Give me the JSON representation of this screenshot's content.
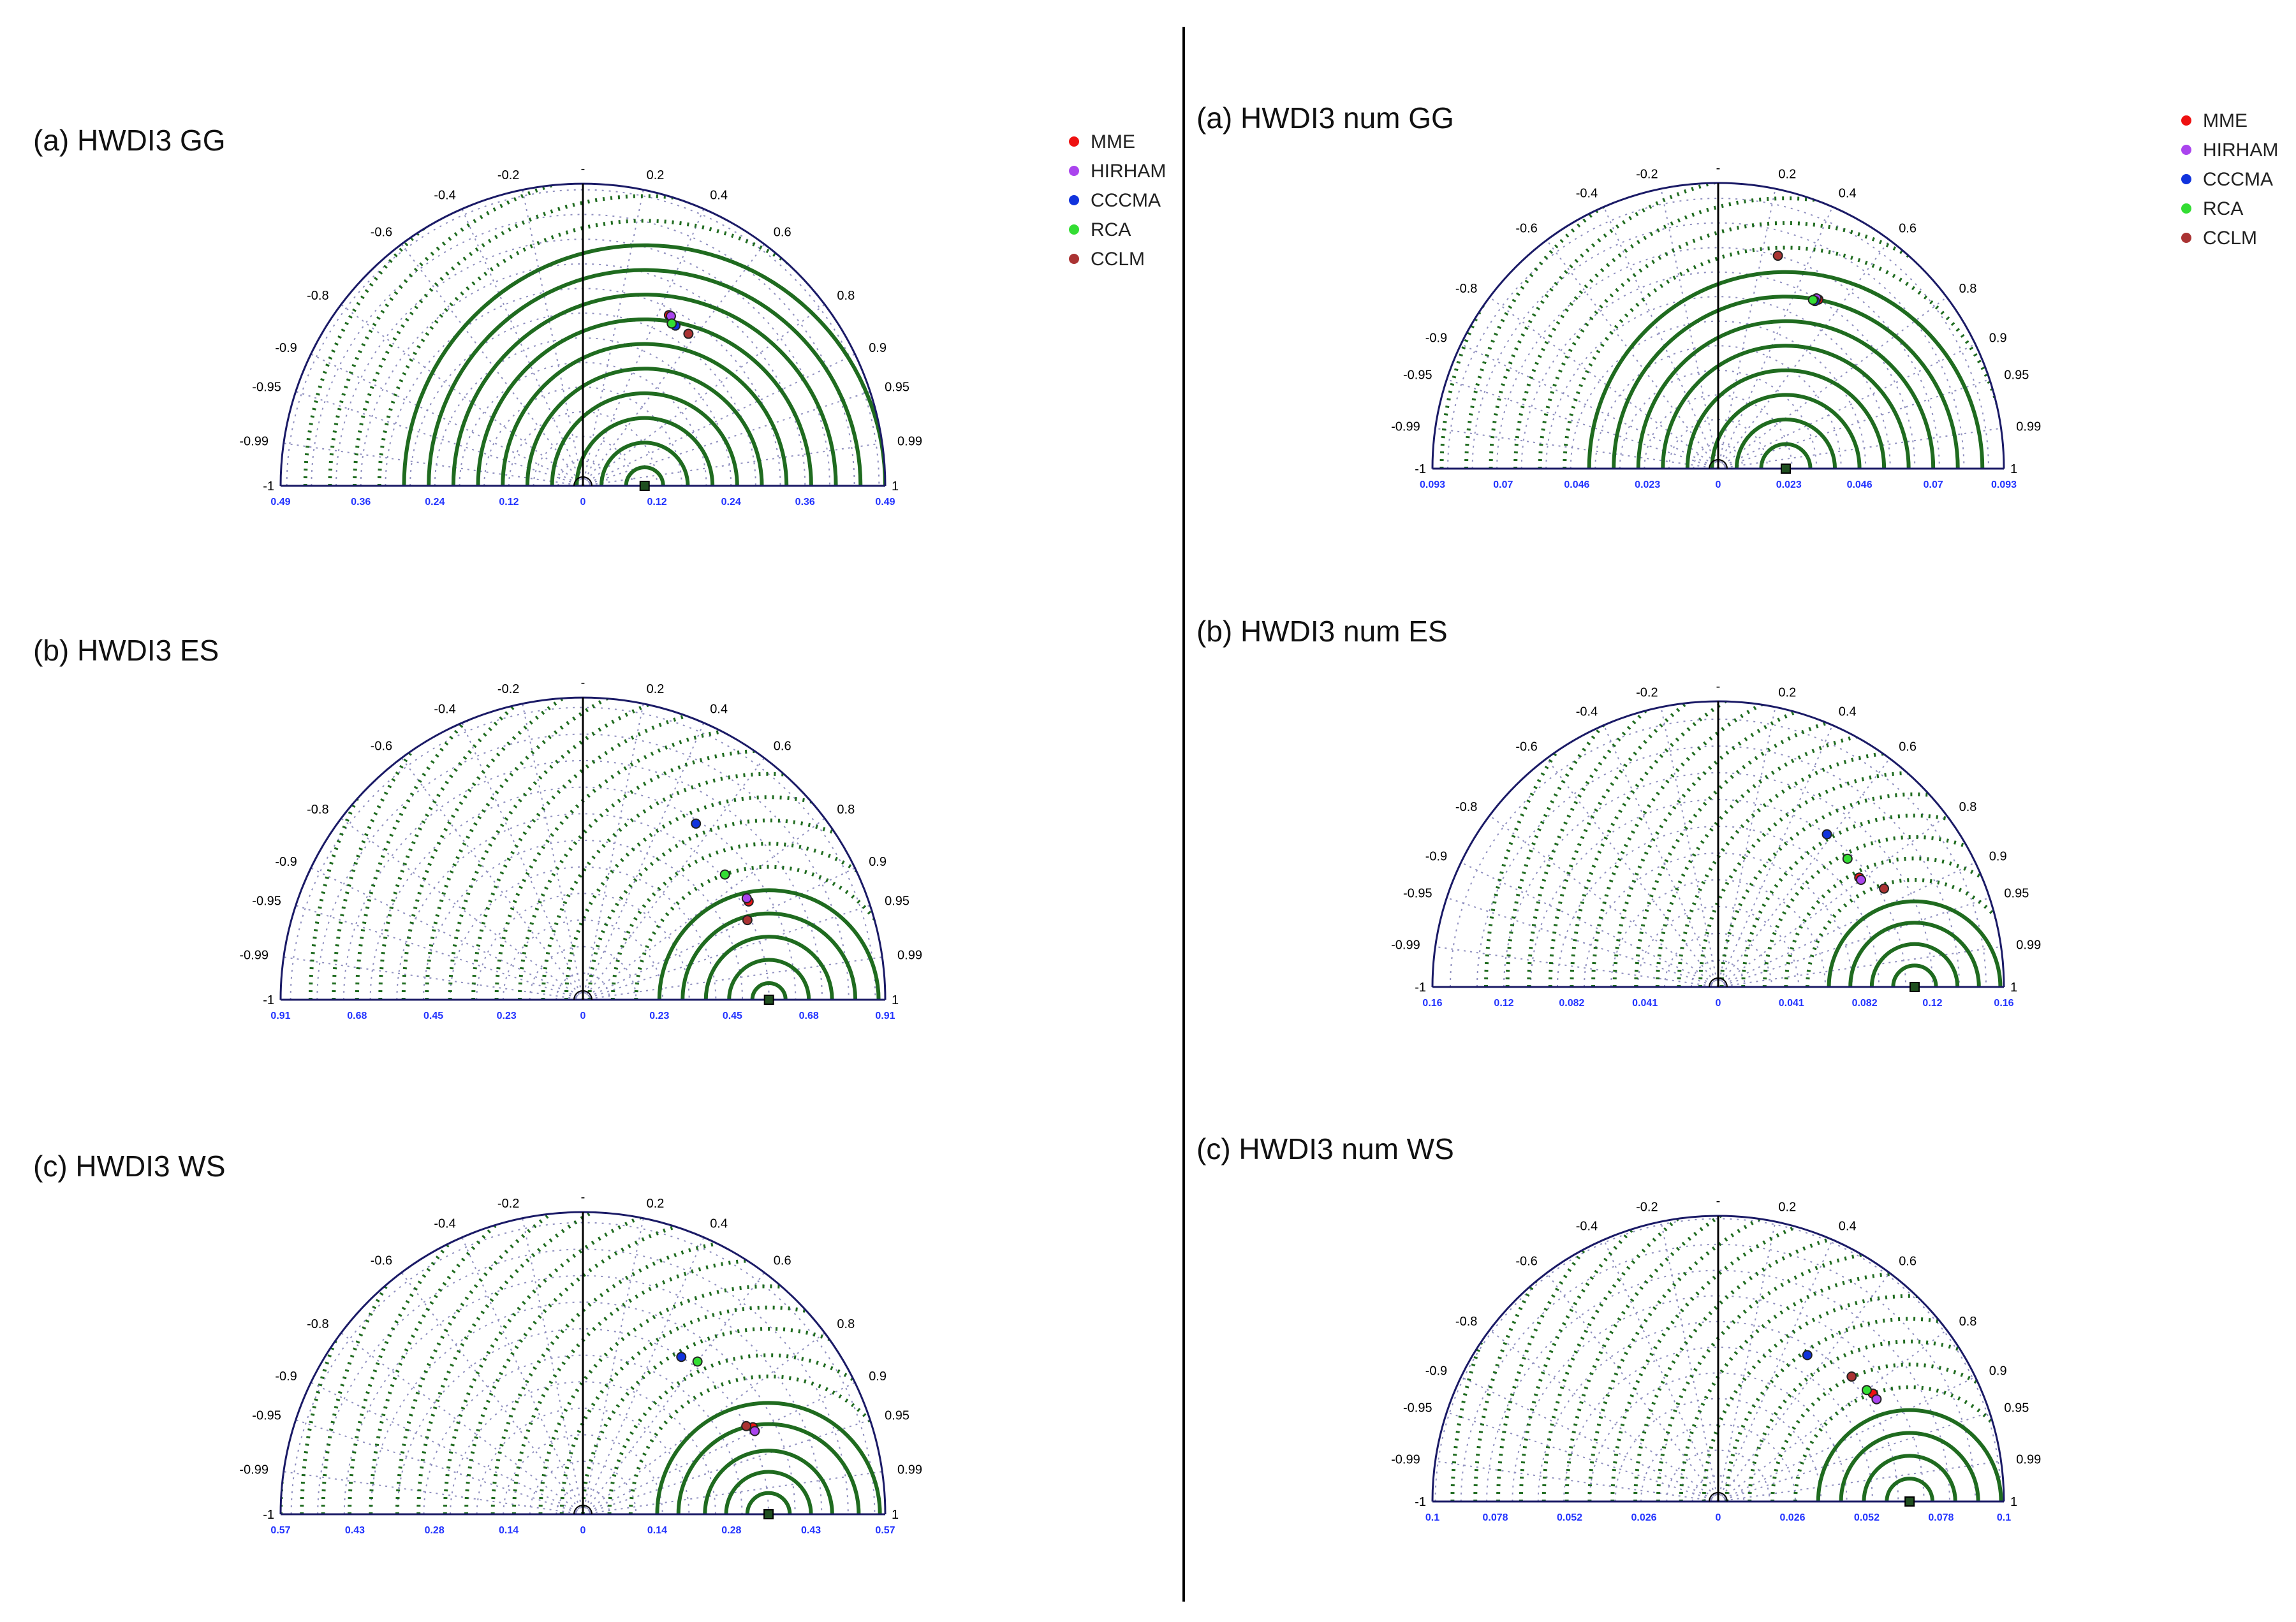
{
  "colors": {
    "outline": "#1a1a66",
    "rms_contour": "#1f6b1f",
    "std_arc": "#1a6b1a",
    "corr_grid": "#8f8fbf",
    "axis_ticks": "#2233ff",
    "contour_label": "#2e8b2e"
  },
  "legend": [
    {
      "label": "MME",
      "color": "#ee1111"
    },
    {
      "label": "HIRHAM",
      "color": "#aa44ee"
    },
    {
      "label": "CCCMA",
      "color": "#1133dd"
    },
    {
      "label": "RCA",
      "color": "#33dd33"
    },
    {
      "label": "CCLM",
      "color": "#aa3333"
    }
  ],
  "corr_ticks": [
    {
      "r": -1,
      "label": "-1"
    },
    {
      "r": -0.99,
      "label": "-0.99"
    },
    {
      "r": -0.95,
      "label": "-0.95"
    },
    {
      "r": -0.9,
      "label": "-0.9"
    },
    {
      "r": -0.8,
      "label": "-0.8"
    },
    {
      "r": -0.6,
      "label": "-0.6"
    },
    {
      "r": -0.4,
      "label": "-0.4"
    },
    {
      "r": -0.2,
      "label": "-0.2"
    },
    {
      "r": 0,
      "label": "-"
    },
    {
      "r": 0.2,
      "label": "0.2"
    },
    {
      "r": 0.4,
      "label": "0.4"
    },
    {
      "r": 0.6,
      "label": "0.6"
    },
    {
      "r": 0.8,
      "label": "0.8"
    },
    {
      "r": 0.9,
      "label": "0.9"
    },
    {
      "r": 0.95,
      "label": "0.95"
    },
    {
      "r": 0.99,
      "label": "0.99"
    },
    {
      "r": 1,
      "label": "1"
    }
  ],
  "chart_data": [
    {
      "type": "taylor",
      "title": "(a) HWDI3 GG",
      "show_legend": true,
      "std_max": 0.49,
      "ref_std": 0.1,
      "x_ticks": [
        -0.49,
        -0.36,
        -0.24,
        -0.12,
        0,
        0.12,
        0.24,
        0.36,
        0.49
      ],
      "x_tick_labels": [
        "0.49",
        "0.36",
        "0.24",
        "0.12",
        "0",
        "0.12",
        "0.24",
        "0.36",
        "0.49"
      ],
      "rms_levels": [
        0.03,
        0.07,
        0.11,
        0.15,
        0.19,
        0.23,
        0.27,
        0.31,
        0.35,
        0.39,
        0.43,
        0.47,
        0.51,
        0.55
      ],
      "std_arcs": [
        0.04,
        0.08,
        0.12,
        0.16,
        0.2,
        0.24,
        0.28,
        0.32,
        0.36,
        0.4,
        0.44,
        0.48
      ],
      "models": [
        {
          "name": "MME",
          "corr": 0.45,
          "std": 0.31
        },
        {
          "name": "HIRHAM",
          "corr": 0.46,
          "std": 0.31
        },
        {
          "name": "CCCMA",
          "corr": 0.5,
          "std": 0.3
        },
        {
          "name": "RCA",
          "corr": 0.48,
          "std": 0.3
        },
        {
          "name": "CCLM",
          "corr": 0.57,
          "std": 0.3
        }
      ]
    },
    {
      "type": "taylor",
      "title": "(b) HWDI3 ES",
      "show_legend": false,
      "std_max": 0.91,
      "ref_std": 0.56,
      "x_ticks": [
        -0.91,
        -0.68,
        -0.45,
        -0.23,
        0,
        0.23,
        0.45,
        0.68,
        0.91
      ],
      "x_tick_labels": [
        "0.91",
        "0.68",
        "0.45",
        "0.23",
        "0",
        "0.23",
        "0.45",
        "0.68",
        "0.91"
      ],
      "rms_levels": [
        0.05,
        0.12,
        0.19,
        0.26,
        0.33,
        0.4,
        0.47,
        0.54,
        0.61,
        0.68,
        0.75,
        0.82,
        0.89,
        0.96,
        1.03,
        1.1,
        1.17,
        1.24,
        1.31,
        1.38
      ],
      "std_arcs": [
        0.08,
        0.16,
        0.24,
        0.32,
        0.4,
        0.48,
        0.56,
        0.64,
        0.72,
        0.8,
        0.88
      ],
      "models": [
        {
          "name": "MME",
          "corr": 0.86,
          "std": 0.58
        },
        {
          "name": "HIRHAM",
          "corr": 0.85,
          "std": 0.58
        },
        {
          "name": "CCCMA",
          "corr": 0.54,
          "std": 0.63
        },
        {
          "name": "RCA",
          "corr": 0.75,
          "std": 0.57
        },
        {
          "name": "CCLM",
          "corr": 0.9,
          "std": 0.55
        }
      ]
    },
    {
      "type": "taylor",
      "title": "(c) HWDI3 WS",
      "show_legend": false,
      "std_max": 0.57,
      "ref_std": 0.35,
      "x_ticks": [
        -0.57,
        -0.43,
        -0.28,
        -0.14,
        0,
        0.14,
        0.28,
        0.43,
        0.57
      ],
      "x_tick_labels": [
        "0.57",
        "0.43",
        "0.28",
        "0.14",
        "0",
        "0.14",
        "0.28",
        "0.43",
        "0.57"
      ],
      "rms_levels": [
        0.04,
        0.08,
        0.12,
        0.17,
        0.21,
        0.26,
        0.3,
        0.35,
        0.39,
        0.43,
        0.48,
        0.52,
        0.57,
        0.61,
        0.66,
        0.7,
        0.75,
        0.79,
        0.84,
        0.88,
        0.92
      ],
      "std_arcs": [
        0.05,
        0.1,
        0.15,
        0.2,
        0.25,
        0.3,
        0.35,
        0.4,
        0.45,
        0.5,
        0.55
      ],
      "models": [
        {
          "name": "MME",
          "corr": 0.89,
          "std": 0.36
        },
        {
          "name": "HIRHAM",
          "corr": 0.9,
          "std": 0.36
        },
        {
          "name": "CCCMA",
          "corr": 0.53,
          "std": 0.35
        },
        {
          "name": "RCA",
          "corr": 0.6,
          "std": 0.36
        },
        {
          "name": "CCLM",
          "corr": 0.88,
          "std": 0.35
        }
      ]
    },
    {
      "type": "taylor",
      "title": "(a) HWDI3 num GG",
      "show_legend": true,
      "std_max": 0.093,
      "ref_std": 0.022,
      "x_ticks": [
        -0.093,
        -0.07,
        -0.046,
        -0.023,
        0,
        0.023,
        0.046,
        0.07,
        0.093
      ],
      "x_tick_labels": [
        "0.093",
        "0.07",
        "0.046",
        "0.023",
        "0",
        "0.023",
        "0.046",
        "0.07",
        "0.093"
      ],
      "rms_levels": [
        0.008,
        0.016,
        0.024,
        0.032,
        0.04,
        0.048,
        0.056,
        0.064,
        0.072,
        0.08,
        0.088,
        0.096,
        0.104,
        0.112
      ],
      "std_arcs": [
        0.008,
        0.016,
        0.024,
        0.032,
        0.04,
        0.048,
        0.056,
        0.064,
        0.072,
        0.08,
        0.088
      ],
      "models": [
        {
          "name": "MME",
          "corr": 0.51,
          "std": 0.064
        },
        {
          "name": "HIRHAM",
          "corr": 0.5,
          "std": 0.064
        },
        {
          "name": "CCCMA",
          "corr": 0.5,
          "std": 0.063
        },
        {
          "name": "RCA",
          "corr": 0.49,
          "std": 0.063
        },
        {
          "name": "CCLM",
          "corr": 0.27,
          "std": 0.072
        }
      ]
    },
    {
      "type": "taylor",
      "title": "(b) HWDI3 num ES",
      "show_legend": false,
      "std_max": 0.16,
      "ref_std": 0.11,
      "x_ticks": [
        -0.16,
        -0.12,
        -0.082,
        -0.041,
        0,
        0.041,
        0.082,
        0.12,
        0.16
      ],
      "x_tick_labels": [
        "0.16",
        "0.12",
        "0.082",
        "0.041",
        "0",
        "0.041",
        "0.082",
        "0.12",
        "0.16"
      ],
      "rms_levels": [
        0.012,
        0.024,
        0.036,
        0.048,
        0.06,
        0.072,
        0.084,
        0.096,
        0.108,
        0.12,
        0.132,
        0.144,
        0.156,
        0.168,
        0.18,
        0.192,
        0.204,
        0.216,
        0.228,
        0.24
      ],
      "std_arcs": [
        0.015,
        0.03,
        0.045,
        0.06,
        0.075,
        0.09,
        0.105,
        0.12,
        0.135,
        0.15
      ],
      "models": [
        {
          "name": "MME",
          "corr": 0.79,
          "std": 0.1
        },
        {
          "name": "HIRHAM",
          "corr": 0.8,
          "std": 0.1
        },
        {
          "name": "CCCMA",
          "corr": 0.58,
          "std": 0.105
        },
        {
          "name": "RCA",
          "corr": 0.71,
          "std": 0.102
        },
        {
          "name": "CCLM",
          "corr": 0.86,
          "std": 0.108
        }
      ]
    },
    {
      "type": "taylor",
      "title": "(c) HWDI3 num WS",
      "show_legend": false,
      "std_max": 0.1,
      "ref_std": 0.067,
      "x_ticks": [
        -0.1,
        -0.078,
        -0.052,
        -0.026,
        0,
        0.026,
        0.052,
        0.078,
        0.1
      ],
      "x_tick_labels": [
        "0.1",
        "0.078",
        "0.052",
        "0.026",
        "0",
        "0.026",
        "0.052",
        "0.078",
        "0.1"
      ],
      "rms_levels": [
        0.008,
        0.016,
        0.024,
        0.032,
        0.04,
        0.048,
        0.056,
        0.064,
        0.072,
        0.08,
        0.088,
        0.096,
        0.104,
        0.112,
        0.12,
        0.128,
        0.136,
        0.144,
        0.152,
        0.16
      ],
      "std_arcs": [
        0.009,
        0.018,
        0.027,
        0.036,
        0.045,
        0.054,
        0.063,
        0.072,
        0.081,
        0.09,
        0.099
      ],
      "models": [
        {
          "name": "MME",
          "corr": 0.82,
          "std": 0.066
        },
        {
          "name": "HIRHAM",
          "corr": 0.84,
          "std": 0.066
        },
        {
          "name": "CCCMA",
          "corr": 0.52,
          "std": 0.06
        },
        {
          "name": "RCA",
          "corr": 0.8,
          "std": 0.065
        },
        {
          "name": "CCLM",
          "corr": 0.73,
          "std": 0.064
        }
      ]
    }
  ]
}
